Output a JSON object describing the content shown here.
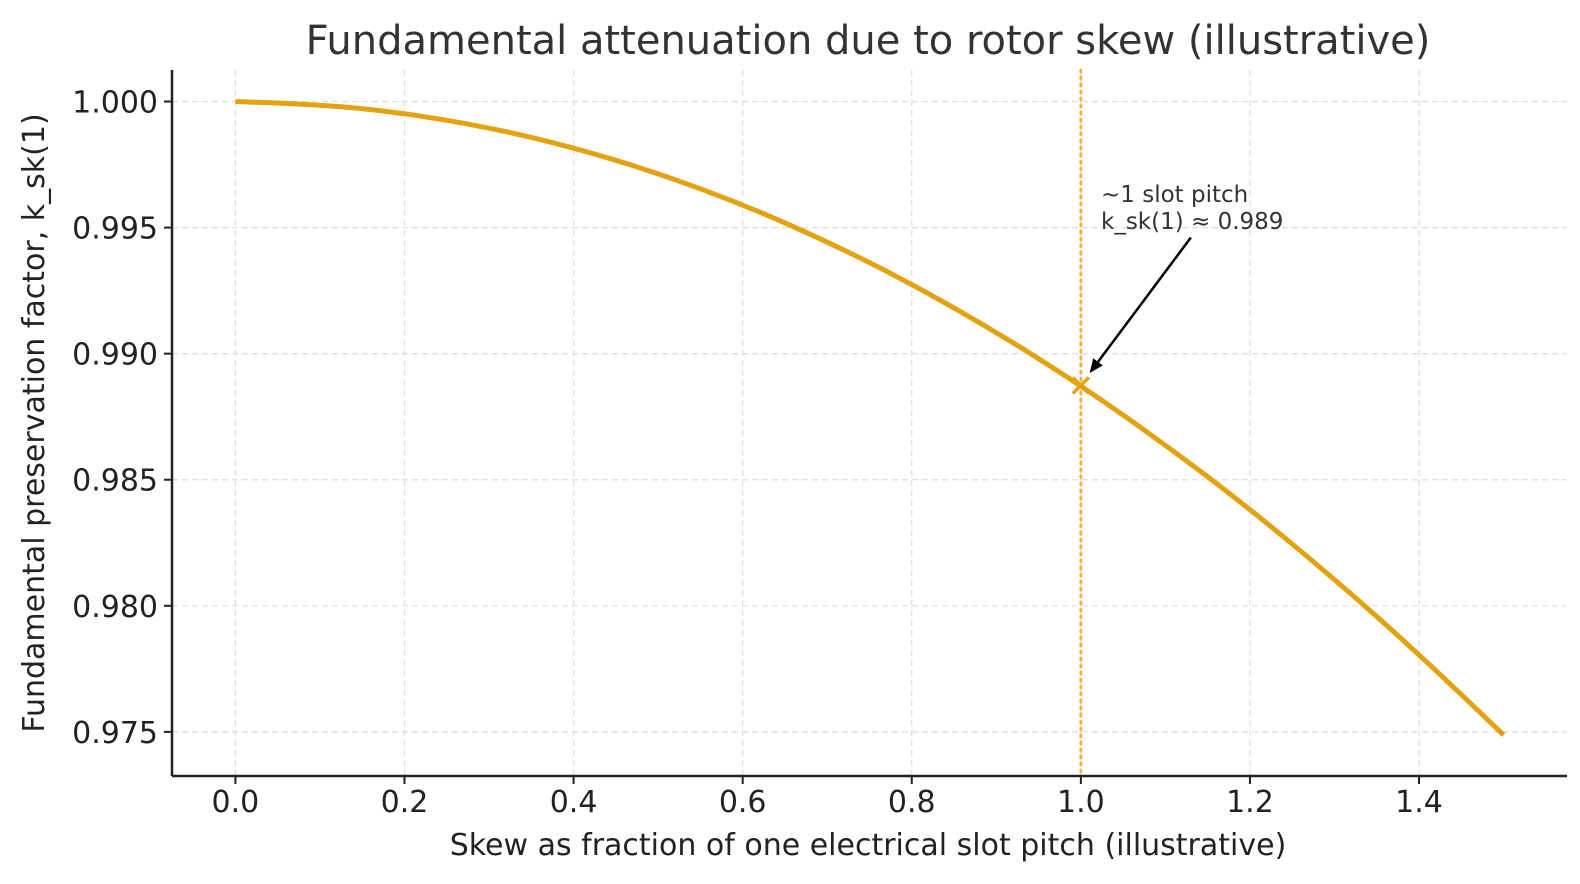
{
  "chart_data": {
    "type": "line",
    "title": "Fundamental attenuation due to rotor skew (illustrative)",
    "xlabel": "Skew as fraction of one electrical slot pitch (illustrative)",
    "ylabel": "Fundamental preservation factor, k_sk(1)",
    "xlim": [
      -0.075,
      1.575
    ],
    "ylim": [
      0.97325,
      1.00125
    ],
    "xticks": [
      "0.0",
      "0.2",
      "0.4",
      "0.6",
      "0.8",
      "1.0",
      "1.2",
      "1.4"
    ],
    "yticks": [
      "1.000",
      "0.995",
      "0.990",
      "0.985",
      "0.980",
      "0.975"
    ],
    "grid": true,
    "series": [
      {
        "color": "#e3a20f",
        "x": [
          0.0,
          0.1,
          0.2,
          0.3,
          0.4,
          0.5,
          0.6,
          0.7,
          0.8,
          0.9,
          1.0,
          1.1,
          1.2,
          1.3,
          1.4,
          1.5
        ],
        "y": [
          1.0,
          0.99989,
          0.99954,
          0.99897,
          0.99818,
          0.99716,
          0.99592,
          0.99445,
          0.99277,
          0.99086,
          0.98874,
          0.98639,
          0.98384,
          0.98106,
          0.97808,
          0.97488
        ]
      }
    ],
    "vline": {
      "x": 1.0,
      "color": "#f0b445",
      "style": "dotted"
    },
    "marker": {
      "x": 1.0,
      "y": 0.98874,
      "symbol": "x",
      "color": "#e3a20f"
    },
    "annotation": {
      "lines": [
        "~1 slot pitch",
        "k_sk(1) ≈ 0.989"
      ],
      "target": {
        "x": 1.0,
        "y": 0.98874
      },
      "text_anchor": {
        "x": 1.13,
        "y": 0.9946
      }
    }
  }
}
